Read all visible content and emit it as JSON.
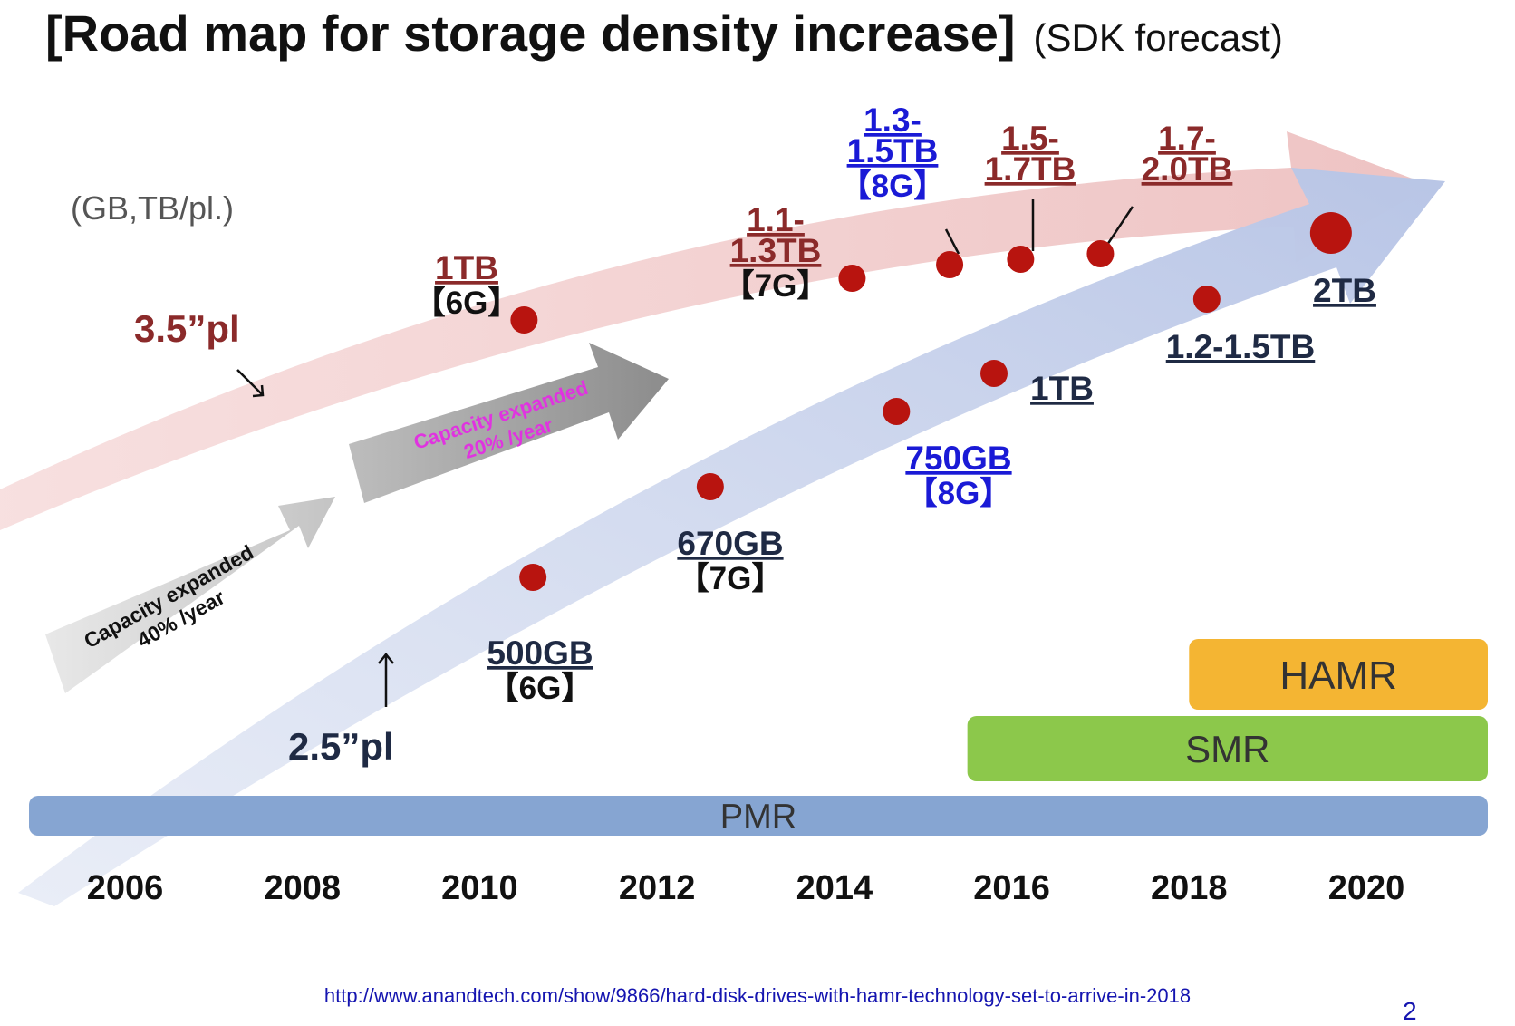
{
  "title": "[Road map for storage density increase]",
  "subtitle": "(SDK forecast)",
  "unit_label": "(GB,TB/pl.)",
  "source_url": "http://www.anandtech.com/show/9866/hard-disk-drives-with-hamr-technology-set-to-arrive-in-2018",
  "page_number": "2",
  "colors": {
    "series_35": "#8b2a2a",
    "series_25": "#1f2a44",
    "highlight_blue": "#1a1ad6",
    "dot": "#b8140f",
    "pmr": "#86a5d2",
    "smr": "#8cc84b",
    "hamr": "#f4b533",
    "growth_text": "#e033e0"
  },
  "chart_data": {
    "type": "scatter",
    "x_ticks": [
      "2006",
      "2008",
      "2010",
      "2012",
      "2014",
      "2016",
      "2018",
      "2020"
    ],
    "xlim": [
      2006,
      2020
    ],
    "series": [
      {
        "name": "3.5”pl",
        "points": [
          {
            "x": 2010.5,
            "label": "1TB",
            "gen": "【6G】"
          },
          {
            "x": 2014.2,
            "label": "1.1-\n1.3TB",
            "gen": "【7G】"
          },
          {
            "x": 2015.3,
            "label": "1.3-\n1.5TB",
            "gen": "【8G】"
          },
          {
            "x": 2016.1,
            "label": "1.5-\n1.7TB",
            "gen": ""
          },
          {
            "x": 2017,
            "label": "1.7-\n2.0TB",
            "gen": ""
          }
        ]
      },
      {
        "name": "2.5”pl",
        "points": [
          {
            "x": 2010.6,
            "label": "500GB",
            "gen": "【6G】"
          },
          {
            "x": 2012.6,
            "label": "670GB",
            "gen": "【7G】"
          },
          {
            "x": 2014.7,
            "label": "750GB",
            "gen": "【8G】"
          },
          {
            "x": 2015.8,
            "label": "1TB",
            "gen": ""
          },
          {
            "x": 2018.2,
            "label": "1.2-1.5TB",
            "gen": ""
          },
          {
            "x": 2019.6,
            "label": "2TB",
            "gen": ""
          }
        ]
      }
    ],
    "growth_rates": [
      {
        "label": "Capacity expanded\n40% /year"
      },
      {
        "label": "Capacity expanded\n20% /year"
      }
    ],
    "technologies": [
      {
        "name": "PMR",
        "start": 2006,
        "end": 2020.5
      },
      {
        "name": "SMR",
        "start": 2015.5,
        "end": 2020.5
      },
      {
        "name": "HAMR",
        "start": 2018,
        "end": 2020.5
      }
    ]
  }
}
